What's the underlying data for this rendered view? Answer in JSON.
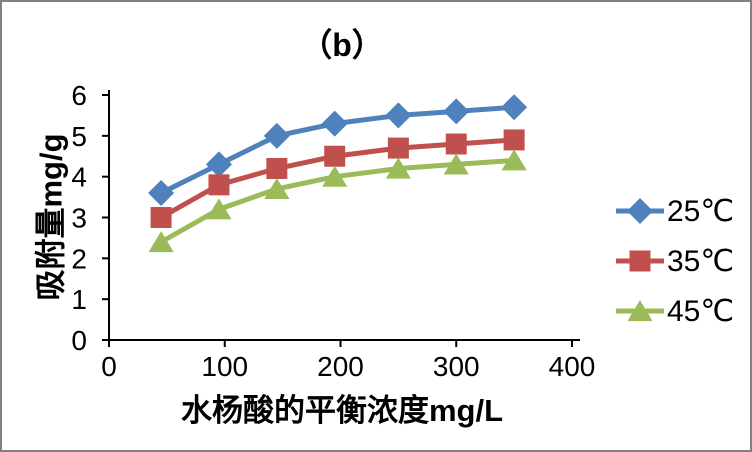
{
  "frame": {
    "border_color": "#808080",
    "background": "#ffffff"
  },
  "chart_data": {
    "type": "line",
    "title": "（b）",
    "xlabel": "水杨酸的平衡浓度mg/L",
    "ylabel": "吸附量mg/g",
    "xlim": [
      0,
      400
    ],
    "ylim": [
      0,
      6
    ],
    "x_ticks": [
      0,
      100,
      200,
      300,
      400
    ],
    "y_ticks": [
      0,
      1,
      2,
      3,
      4,
      5,
      6
    ],
    "grid": false,
    "legend_position": "right",
    "axis_color": "#000000",
    "text_color": "#000000",
    "x": [
      45,
      95,
      145,
      195,
      250,
      300,
      350
    ],
    "series": [
      {
        "name": "25℃",
        "marker": "diamond",
        "color": "#4F81BD",
        "values": [
          3.6,
          4.3,
          5.0,
          5.3,
          5.5,
          5.6,
          5.7
        ]
      },
      {
        "name": "35℃",
        "marker": "square",
        "color": "#C0504D",
        "values": [
          3.0,
          3.8,
          4.2,
          4.5,
          4.7,
          4.8,
          4.9
        ]
      },
      {
        "name": "45℃",
        "marker": "triangle",
        "color": "#9BBB59",
        "values": [
          2.4,
          3.2,
          3.7,
          4.0,
          4.2,
          4.3,
          4.4
        ]
      }
    ]
  }
}
